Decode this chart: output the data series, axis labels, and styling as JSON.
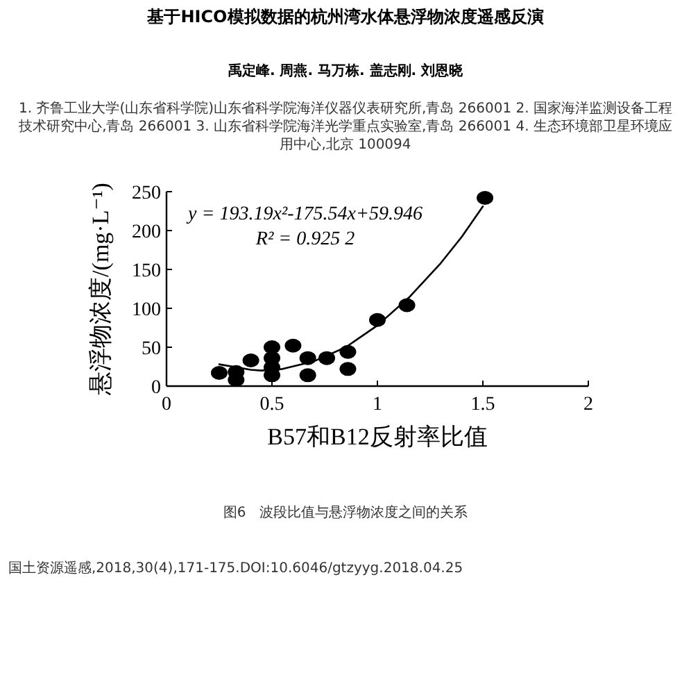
{
  "chart_data": {
    "type": "scatter",
    "title": "基于HICO模拟数据的杭州湾水体悬浮物浓度遥感反演",
    "subtitle": "禹定峰. 周燕. 马万栋. 盖志刚. 刘恩晓",
    "xlabel": "B57和B12反射率比值",
    "ylabel": "悬浮物浓度/(mg·L⁻¹)",
    "annotations": [
      "1. 齐鲁工业大学(山东省科学院)山东省科学院海洋仪器仪表研究所,青岛 266001 2. 国家海洋监测设备工程技术研究中心,青岛 266001 3. 山东省科学院海洋光学重点实验室,青岛 266001 4. 生态环境部卫星环境应用中心,北京 100094",
      "y = 193.19x²-175.54x+59.946",
      "R² = 0.925 2",
      "图6　波段比值与悬浮物浓度之间的关系",
      "国土资源遥感,2018,30(4),171-175.DOI:10.6046/gtzyyg.2018.04.25"
    ],
    "series": [
      {
        "color": "#000000",
        "marker": "circle",
        "x": [
          0.25,
          0.33,
          0.33,
          0.4,
          0.5,
          0.5,
          0.5,
          0.5,
          0.6,
          0.67,
          0.67,
          0.76,
          0.86,
          0.86,
          1.0,
          1.14,
          1.51
        ],
        "values": [
          17,
          18,
          8,
          33,
          50,
          36,
          24,
          14,
          52,
          36,
          14,
          36,
          44,
          22,
          85,
          104,
          242
        ]
      },
      {
        "type": "line",
        "color": "#000000",
        "line_style": "solid",
        "x": [
          0.25,
          0.4,
          0.45,
          0.55,
          0.7,
          0.85,
          1.0,
          1.15,
          1.3,
          1.4,
          1.5
        ],
        "values": [
          28,
          21,
          20,
          22,
          32,
          50,
          78,
          114,
          158,
          192,
          231
        ]
      }
    ],
    "xlim": [
      0,
      2
    ],
    "xticks": [
      0,
      0.5,
      1,
      1.5,
      2
    ],
    "ylim": [
      0,
      250
    ],
    "yticks": [
      0,
      50,
      100,
      150,
      200,
      250
    ],
    "grid": false
  }
}
